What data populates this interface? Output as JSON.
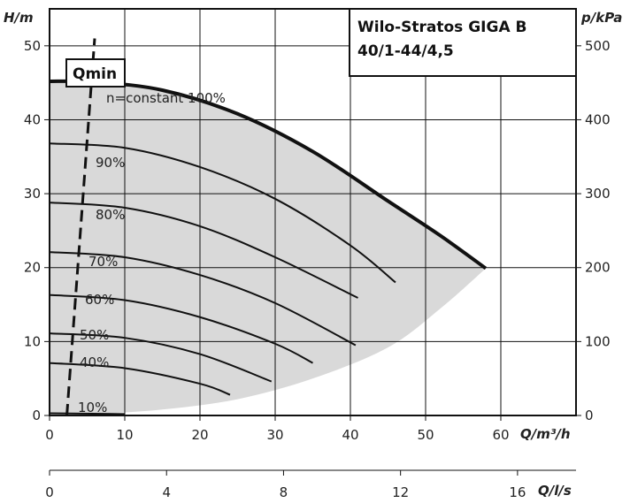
{
  "chart_data": {
    "type": "line",
    "title_lines": [
      "Wilo-Stratos GIGA B",
      "40/1-44/4,5"
    ],
    "y_left": {
      "label": "H/m",
      "range": [
        0,
        55
      ],
      "ticks": [
        "0",
        "10",
        "20",
        "30",
        "40",
        "50"
      ],
      "tick_values": [
        0,
        10,
        20,
        30,
        40,
        50
      ]
    },
    "y_right": {
      "label": "p/kPa",
      "range": [
        0,
        550
      ],
      "ticks": [
        "0",
        "100",
        "200",
        "300",
        "400",
        "500"
      ],
      "tick_values": [
        0,
        100,
        200,
        300,
        400,
        500
      ]
    },
    "x_main": {
      "label": "Q/m³/h",
      "range": [
        0,
        70
      ],
      "ticks": [
        "0",
        "10",
        "20",
        "30",
        "40",
        "50",
        "60"
      ],
      "tick_values": [
        0,
        10,
        20,
        30,
        40,
        50,
        60
      ]
    },
    "x_secondary": {
      "label": "Q/l/s",
      "range": [
        0,
        18
      ],
      "ticks": [
        "0",
        "4",
        "8",
        "12",
        "16"
      ],
      "tick_values": [
        0,
        4,
        8,
        12,
        16
      ]
    },
    "grid": true,
    "series": [
      {
        "name": "n=constant 100%",
        "x": [
          0,
          6,
          15,
          25,
          35,
          45,
          52,
          58
        ],
        "y": [
          45.2,
          45.1,
          44.0,
          40.8,
          35.7,
          29.0,
          24.3,
          19.9
        ]
      },
      {
        "name": "90%",
        "x": [
          0,
          10,
          20,
          30,
          40,
          46
        ],
        "y": [
          36.8,
          36.2,
          33.6,
          29.3,
          23.0,
          18.0
        ]
      },
      {
        "name": "80%",
        "x": [
          0,
          10,
          20,
          30,
          41
        ],
        "y": [
          28.8,
          28.1,
          25.6,
          21.4,
          15.9
        ]
      },
      {
        "name": "70%",
        "x": [
          0,
          10,
          20,
          30,
          40.7
        ],
        "y": [
          22.1,
          21.4,
          19.0,
          15.2,
          9.5
        ]
      },
      {
        "name": "60%",
        "x": [
          0,
          10,
          20,
          30,
          35
        ],
        "y": [
          16.3,
          15.6,
          13.3,
          9.7,
          7.1
        ]
      },
      {
        "name": "50%",
        "x": [
          0,
          10,
          20,
          29.5
        ],
        "y": [
          11.1,
          10.5,
          8.3,
          4.6
        ]
      },
      {
        "name": "40%",
        "x": [
          0,
          10,
          20,
          24
        ],
        "y": [
          7.1,
          6.4,
          4.3,
          2.8
        ]
      },
      {
        "name": "10%",
        "x": [
          0,
          10
        ],
        "y": [
          0.3,
          0.2
        ]
      }
    ],
    "operating_envelope": {
      "x": [
        58,
        52,
        45,
        35,
        25,
        15,
        6,
        0
      ],
      "y": [
        19.9,
        14.5,
        9.2,
        5.0,
        2.2,
        0.8,
        0.2,
        0
      ]
    },
    "qmin_label": "Qmin",
    "qmin_line": {
      "x": [
        2.3,
        6.0
      ],
      "y": [
        0,
        51
      ]
    }
  }
}
